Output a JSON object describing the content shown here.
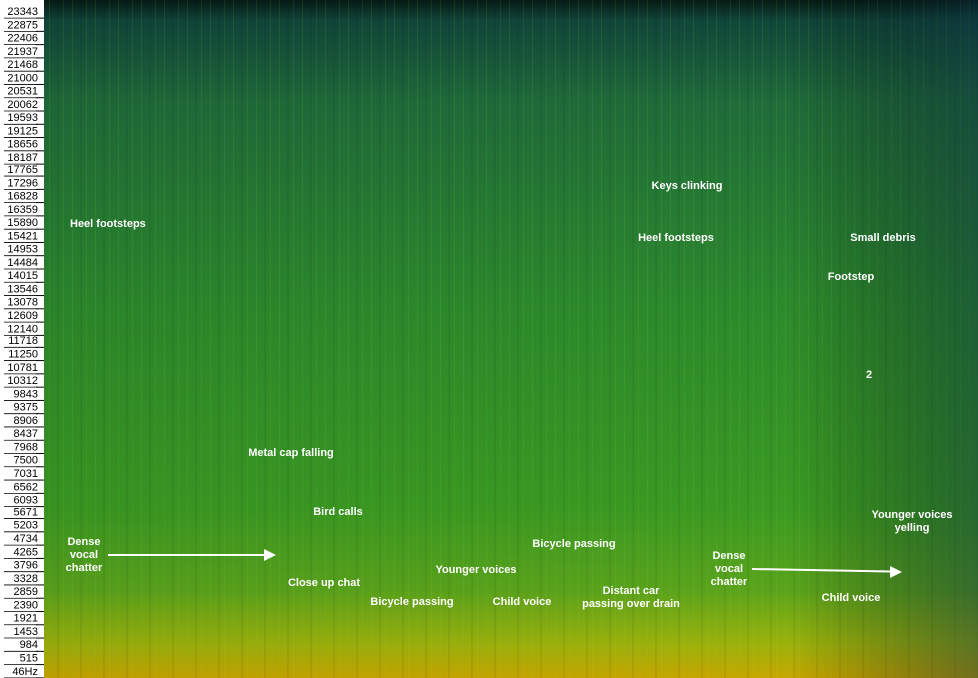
{
  "chart_data": {
    "type": "spectrogram",
    "ylim": [
      -170,
      23770
    ],
    "yticks": [
      23343,
      22875,
      22406,
      21937,
      21468,
      21000,
      20531,
      20062,
      19593,
      19125,
      18656,
      18187,
      17765,
      17296,
      16828,
      16359,
      15890,
      15421,
      14953,
      14484,
      14015,
      13546,
      13078,
      12609,
      12140,
      11718,
      11250,
      10781,
      10312,
      9843,
      9375,
      8906,
      8437,
      7968,
      7500,
      7031,
      6562,
      6093,
      5671,
      5203,
      4734,
      4265,
      3796,
      3328,
      2859,
      2390,
      1921,
      1453,
      984,
      515,
      {
        "value": 46,
        "label": "46Hz"
      }
    ],
    "annotations": [
      [
        "Heel footsteps"
      ],
      [
        "Metal cap falling"
      ],
      [
        "Bird calls"
      ],
      [
        "Dense",
        "vocal",
        "chatter"
      ],
      [
        "Close up chat"
      ],
      [
        "Bicycle passing"
      ],
      [
        "Younger voices"
      ],
      [
        "Child voice"
      ],
      [
        "Bicycle passing"
      ],
      [
        "Distant car",
        "passing over drain"
      ],
      [
        "Keys clinking"
      ],
      [
        "Heel footsteps"
      ],
      [
        "Small debris"
      ],
      [
        "Footstep"
      ],
      [
        "Dense",
        "vocal",
        "chatter"
      ],
      [
        "Younger voices",
        "yelling"
      ],
      [
        "Child voice"
      ],
      [
        "2"
      ]
    ]
  }
}
